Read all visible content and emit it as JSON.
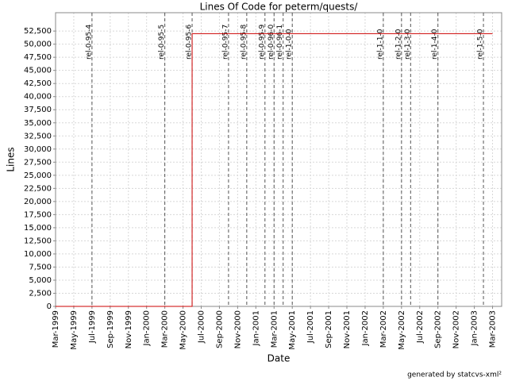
{
  "chart_data": {
    "type": "line",
    "title": "Lines Of Code for peterm/quests/",
    "xlabel": "Date",
    "ylabel": "Lines",
    "footer": "generated by statcvs-xml²",
    "x": [
      "1999-03",
      "2000-06",
      "2000-06",
      "2000-06",
      "2000-06",
      "2000-07",
      "2003-03"
    ],
    "values": [
      0,
      0,
      18500,
      33000,
      52000,
      52000,
      52000
    ],
    "color": "#cc0000",
    "xlim": [
      "1999-03",
      "2003-04"
    ],
    "xticks": [
      {
        "value": "1999-03",
        "label": "Mar-1999"
      },
      {
        "value": "1999-05",
        "label": "May-1999"
      },
      {
        "value": "1999-07",
        "label": "Jul-1999"
      },
      {
        "value": "1999-09",
        "label": "Sep-1999"
      },
      {
        "value": "1999-11",
        "label": "Nov-1999"
      },
      {
        "value": "2000-01",
        "label": "Jan-2000"
      },
      {
        "value": "2000-03",
        "label": "Mar-2000"
      },
      {
        "value": "2000-05",
        "label": "May-2000"
      },
      {
        "value": "2000-07",
        "label": "Jul-2000"
      },
      {
        "value": "2000-09",
        "label": "Sep-2000"
      },
      {
        "value": "2000-11",
        "label": "Nov-2000"
      },
      {
        "value": "2001-01",
        "label": "Jan-2001"
      },
      {
        "value": "2001-03",
        "label": "Mar-2001"
      },
      {
        "value": "2001-05",
        "label": "May-2001"
      },
      {
        "value": "2001-07",
        "label": "Jul-2001"
      },
      {
        "value": "2001-09",
        "label": "Sep-2001"
      },
      {
        "value": "2001-11",
        "label": "Nov-2001"
      },
      {
        "value": "2002-01",
        "label": "Jan-2002"
      },
      {
        "value": "2002-03",
        "label": "Mar-2002"
      },
      {
        "value": "2002-05",
        "label": "May-2002"
      },
      {
        "value": "2002-07",
        "label": "Jul-2002"
      },
      {
        "value": "2002-09",
        "label": "Sep-2002"
      },
      {
        "value": "2002-11",
        "label": "Nov-2002"
      },
      {
        "value": "2003-01",
        "label": "Jan-2003"
      },
      {
        "value": "2003-03",
        "label": "Mar-2003"
      }
    ],
    "ylim": [
      0,
      56000
    ],
    "yticks": [
      0,
      {
        "value": 2500,
        "label": "2,500"
      },
      {
        "value": 5000,
        "label": "5,000"
      },
      {
        "value": 7500,
        "label": "7,500"
      },
      {
        "value": 10000,
        "label": "10,000"
      },
      {
        "value": 12500,
        "label": "12,500"
      },
      {
        "value": 15000,
        "label": "15,000"
      },
      {
        "value": 17500,
        "label": "17,500"
      },
      {
        "value": 20000,
        "label": "20,000"
      },
      {
        "value": 22500,
        "label": "22,500"
      },
      {
        "value": 25000,
        "label": "25,000"
      },
      {
        "value": 27500,
        "label": "27,500"
      },
      {
        "value": 30000,
        "label": "30,000"
      },
      {
        "value": 32500,
        "label": "32,500"
      },
      {
        "value": 35000,
        "label": "35,000"
      },
      {
        "value": 37500,
        "label": "37,500"
      },
      {
        "value": 40000,
        "label": "40,000"
      },
      {
        "value": 42500,
        "label": "42,500"
      },
      {
        "value": 45000,
        "label": "45,000"
      },
      {
        "value": 47500,
        "label": "47,500"
      },
      {
        "value": 50000,
        "label": "50,000"
      },
      {
        "value": 52500,
        "label": "52,500"
      }
    ],
    "grid": true,
    "annotations": [
      {
        "label": "rel-0-95-4",
        "x": "1999-07"
      },
      {
        "label": "rel-0-95-5",
        "x": "2000-03"
      },
      {
        "label": "rel-0-95-6",
        "x": "2000-06"
      },
      {
        "label": "rel-0-95-7",
        "x": "2000-10"
      },
      {
        "label": "rel-0-95-8",
        "x": "2000-12"
      },
      {
        "label": "rel-0-95-9",
        "x": "2001-02"
      },
      {
        "label": "rel-0-96-0",
        "x": "2001-03"
      },
      {
        "label": "rel-0-96-1",
        "x": "2001-04"
      },
      {
        "label": "rel-1-0-0",
        "x": "2001-05"
      },
      {
        "label": "rel-1-1-0",
        "x": "2002-03"
      },
      {
        "label": "rel-1-2-0",
        "x": "2002-05"
      },
      {
        "label": "rel-1-3-0",
        "x": "2002-06"
      },
      {
        "label": "rel-1-4-0",
        "x": "2002-09"
      },
      {
        "label": "rel-1-5-0",
        "x": "2003-02"
      }
    ]
  }
}
